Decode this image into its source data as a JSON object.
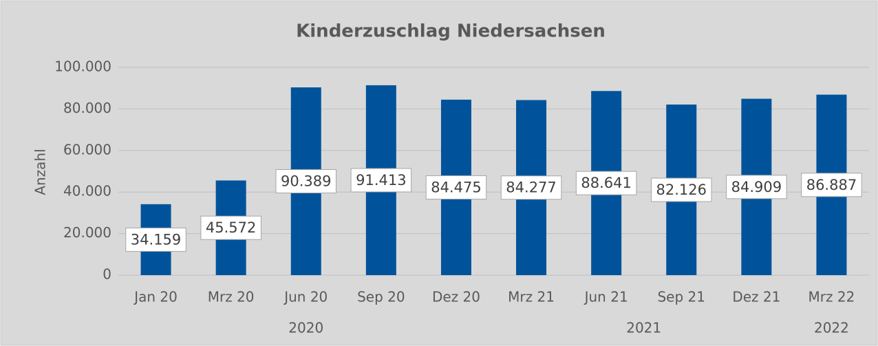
{
  "chart_data": {
    "type": "bar",
    "title": "Kinderzuschlag Niedersachsen",
    "y_axis_label": "Anzahl",
    "categories": [
      "Jan 20",
      "Mrz 20",
      "Jun 20",
      "Sep 20",
      "Dez 20",
      "Mrz 21",
      "Jun 21",
      "Sep 21",
      "Dez 21",
      "Mrz 22"
    ],
    "values": [
      34159,
      45572,
      90389,
      91413,
      84475,
      84277,
      88641,
      82126,
      84909,
      86887
    ],
    "value_labels": [
      "34.159",
      "45.572",
      "90.389",
      "91.413",
      "84.475",
      "84.277",
      "88.641",
      "82.126",
      "84.909",
      "86.887"
    ],
    "groups": [
      {
        "label": "2020",
        "count": 5
      },
      {
        "label": "2021",
        "count": 4
      },
      {
        "label": "2022",
        "count": 1
      }
    ],
    "color": "#00539b",
    "ylim": [
      0,
      100000
    ],
    "yticks": [
      0,
      {
        "value": 20000,
        "label": "20.000"
      },
      {
        "value": 40000,
        "label": "40.000"
      },
      {
        "value": 60000,
        "label": "60.000"
      },
      {
        "value": 80000,
        "label": "80.000"
      },
      {
        "value": 100000,
        "label": "100.000"
      }
    ],
    "grid": true
  }
}
